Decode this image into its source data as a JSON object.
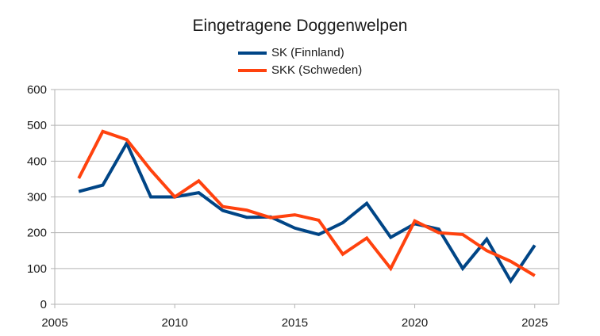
{
  "chart_data": {
    "type": "line",
    "title": "Eingetragene Doggenwelpen",
    "xlabel": "",
    "ylabel": "",
    "xlim": [
      2005,
      2026
    ],
    "ylim": [
      0,
      600
    ],
    "x_ticks": [
      2005,
      2010,
      2015,
      2020,
      2025
    ],
    "y_ticks": [
      0,
      100,
      200,
      300,
      400,
      500,
      600
    ],
    "grid": "horizontal",
    "legend_position": "top-center",
    "x": [
      2006,
      2007,
      2008,
      2009,
      2010,
      2011,
      2012,
      2013,
      2014,
      2015,
      2016,
      2017,
      2018,
      2019,
      2020,
      2021,
      2022,
      2023,
      2024,
      2025
    ],
    "series": [
      {
        "name": "SK (Finnland)",
        "color": "#004586",
        "values": [
          315,
          333,
          450,
          300,
          300,
          312,
          262,
          243,
          244,
          213,
          195,
          228,
          282,
          187,
          225,
          210,
          100,
          182,
          65,
          165
        ]
      },
      {
        "name": "SKK (Schweden)",
        "color": "#ff420e",
        "values": [
          352,
          483,
          460,
          375,
          300,
          345,
          273,
          263,
          242,
          250,
          235,
          140,
          185,
          100,
          233,
          200,
          195,
          150,
          120,
          80
        ]
      }
    ]
  }
}
